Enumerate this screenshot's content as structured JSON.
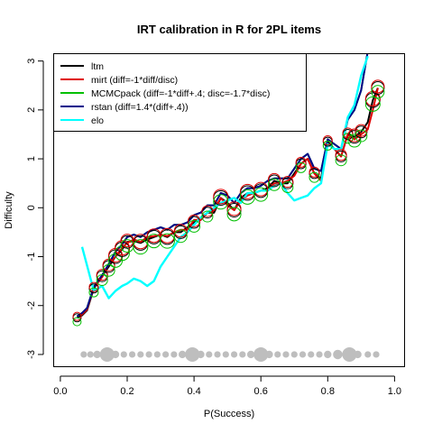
{
  "chart_data": {
    "type": "line",
    "title": "IRT calibration in R for 2PL items",
    "xlabel": "P(Success)",
    "ylabel": "Difficulty",
    "xlim": [
      -0.02,
      1.03
    ],
    "ylim": [
      -3.25,
      3.15
    ],
    "xticks": [
      0.0,
      0.2,
      0.4,
      0.6,
      0.8,
      1.0
    ],
    "xtick_labels": [
      "0.0",
      "0.2",
      "0.4",
      "0.6",
      "0.8",
      "1.0"
    ],
    "yticks": [
      -3,
      -2,
      -1,
      0,
      1,
      2,
      3
    ],
    "ytick_labels": [
      "-3",
      "-2",
      "-1",
      "0",
      "1",
      "2",
      "3"
    ],
    "grid": false,
    "legend_position": "top-left",
    "series": [
      {
        "name": "ltm",
        "color": "#000000",
        "x": [
          0.05,
          0.065,
          0.08,
          0.1,
          0.125,
          0.145,
          0.165,
          0.185,
          0.2,
          0.22,
          0.24,
          0.26,
          0.28,
          0.3,
          0.32,
          0.34,
          0.36,
          0.38,
          0.4,
          0.42,
          0.44,
          0.46,
          0.48,
          0.5,
          0.52,
          0.54,
          0.56,
          0.58,
          0.6,
          0.62,
          0.64,
          0.66,
          0.68,
          0.7,
          0.72,
          0.74,
          0.76,
          0.78,
          0.8,
          0.82,
          0.84,
          0.86,
          0.88,
          0.9,
          0.92,
          0.935,
          0.95
        ],
        "y": [
          -2.25,
          -2.2,
          -2.1,
          -1.65,
          -1.4,
          -1.2,
          -1.0,
          -0.85,
          -0.7,
          -0.68,
          -0.72,
          -0.65,
          -0.6,
          -0.55,
          -0.6,
          -0.5,
          -0.5,
          -0.4,
          -0.3,
          -0.25,
          -0.1,
          -0.1,
          0.2,
          0.1,
          -0.05,
          0.2,
          0.3,
          0.3,
          0.35,
          0.4,
          0.55,
          0.5,
          0.5,
          0.7,
          0.9,
          1.0,
          0.7,
          0.6,
          1.35,
          1.2,
          1.05,
          1.5,
          1.45,
          1.55,
          1.75,
          2.2,
          2.45
        ]
      },
      {
        "name": "mirt (diff=-1*diff/disc)",
        "color": "#df0000",
        "x": [
          0.05,
          0.065,
          0.08,
          0.1,
          0.125,
          0.145,
          0.165,
          0.185,
          0.2,
          0.22,
          0.24,
          0.26,
          0.28,
          0.3,
          0.32,
          0.34,
          0.36,
          0.38,
          0.4,
          0.42,
          0.44,
          0.46,
          0.48,
          0.5,
          0.52,
          0.54,
          0.56,
          0.58,
          0.6,
          0.62,
          0.64,
          0.66,
          0.68,
          0.7,
          0.72,
          0.74,
          0.76,
          0.78,
          0.8,
          0.82,
          0.84,
          0.86,
          0.88,
          0.9,
          0.92,
          0.935,
          0.95
        ],
        "y": [
          -2.22,
          -2.18,
          -2.08,
          -1.63,
          -1.42,
          -1.15,
          -1.0,
          -0.82,
          -0.72,
          -0.65,
          -0.7,
          -0.6,
          -0.58,
          -0.55,
          -0.58,
          -0.5,
          -0.45,
          -0.45,
          -0.25,
          -0.25,
          -0.1,
          -0.05,
          0.2,
          0.05,
          -0.05,
          0.15,
          0.25,
          0.3,
          0.35,
          0.35,
          0.5,
          0.5,
          0.55,
          0.65,
          0.9,
          1.0,
          0.7,
          0.55,
          1.3,
          1.2,
          1.05,
          1.5,
          1.4,
          1.5,
          1.6,
          2.0,
          2.45
        ]
      },
      {
        "name": "MCMCpack (diff=-1*diff+.4; disc=-1.7*disc)",
        "color": "#00c000",
        "x": [
          0.05,
          0.065,
          0.08,
          0.1,
          0.125,
          0.145,
          0.165,
          0.185,
          0.2,
          0.22,
          0.24,
          0.26,
          0.28,
          0.3,
          0.32,
          0.34,
          0.36,
          0.38,
          0.4,
          0.42,
          0.44,
          0.46,
          0.48,
          0.5,
          0.52,
          0.54,
          0.56,
          0.58,
          0.6,
          0.62,
          0.64,
          0.66,
          0.68,
          0.7,
          0.72,
          0.74,
          0.76,
          0.78,
          0.8,
          0.82,
          0.84,
          0.86,
          0.88,
          0.9,
          0.92
        ],
        "y": [
          -2.22,
          -2.15,
          -2.05,
          -1.62,
          -1.38,
          -1.15,
          -0.9,
          -0.75,
          -0.6,
          -0.55,
          -0.6,
          -0.5,
          -0.45,
          -0.4,
          -0.45,
          -0.35,
          -0.35,
          -0.3,
          -0.15,
          -0.1,
          0.05,
          0.05,
          0.3,
          0.25,
          0.1,
          0.3,
          0.4,
          0.4,
          0.45,
          0.55,
          0.6,
          0.6,
          0.6,
          0.8,
          1.0,
          1.1,
          0.8,
          0.75,
          1.4,
          1.3,
          1.2,
          1.8,
          2.0,
          2.4,
          3.2
        ]
      },
      {
        "name": "rstan (diff=1.4*(diff+.4))",
        "color": "#00008b",
        "x": [
          0.05,
          0.065,
          0.08,
          0.1,
          0.125,
          0.145,
          0.165,
          0.185,
          0.2,
          0.22,
          0.24,
          0.26,
          0.28,
          0.3,
          0.32,
          0.34,
          0.36,
          0.38,
          0.4,
          0.42,
          0.44,
          0.46,
          0.48,
          0.5,
          0.52,
          0.54,
          0.56,
          0.58,
          0.6,
          0.62,
          0.64,
          0.66,
          0.68,
          0.7,
          0.72,
          0.74,
          0.76,
          0.78,
          0.8,
          0.82,
          0.84,
          0.86,
          0.88,
          0.9,
          0.92
        ],
        "y": [
          -2.22,
          -2.15,
          -2.05,
          -1.62,
          -1.38,
          -1.15,
          -0.9,
          -0.75,
          -0.6,
          -0.55,
          -0.6,
          -0.5,
          -0.45,
          -0.4,
          -0.45,
          -0.35,
          -0.35,
          -0.3,
          -0.15,
          -0.1,
          0.05,
          0.05,
          0.3,
          0.25,
          0.1,
          0.3,
          0.4,
          0.4,
          0.45,
          0.55,
          0.6,
          0.6,
          0.6,
          0.8,
          1.0,
          1.1,
          0.8,
          0.75,
          1.4,
          1.3,
          1.2,
          1.8,
          2.0,
          2.4,
          3.2
        ]
      },
      {
        "name": "elo",
        "color": "#00ffff",
        "x": [
          0.065,
          0.1,
          0.125,
          0.145,
          0.165,
          0.185,
          0.2,
          0.22,
          0.24,
          0.26,
          0.28,
          0.3,
          0.32,
          0.34,
          0.36,
          0.38,
          0.4,
          0.42,
          0.44,
          0.46,
          0.48,
          0.5,
          0.52,
          0.54,
          0.56,
          0.58,
          0.6,
          0.62,
          0.64,
          0.66,
          0.68,
          0.7,
          0.72,
          0.74,
          0.76,
          0.78,
          0.8,
          0.82,
          0.84,
          0.86,
          0.88,
          0.9,
          0.92
        ],
        "y": [
          -0.8,
          -1.7,
          -1.6,
          -1.85,
          -1.7,
          -1.6,
          -1.55,
          -1.45,
          -1.5,
          -1.6,
          -1.5,
          -1.2,
          -1.0,
          -0.8,
          -0.6,
          -0.5,
          -0.35,
          -0.2,
          -0.1,
          0.0,
          0.1,
          0.15,
          0.2,
          0.1,
          0.3,
          0.3,
          0.35,
          0.35,
          0.45,
          0.5,
          0.3,
          0.15,
          0.2,
          0.25,
          0.4,
          0.5,
          1.3,
          1.2,
          1.2,
          1.85,
          2.1,
          2.7,
          3.1
        ]
      }
    ],
    "circle_markers": [
      {
        "x": 0.05,
        "y": -2.25,
        "size": 0.3
      },
      {
        "x": 0.1,
        "y": -1.65,
        "size": 0.4
      },
      {
        "x": 0.125,
        "y": -1.4,
        "size": 0.6
      },
      {
        "x": 0.145,
        "y": -1.2,
        "size": 0.7
      },
      {
        "x": 0.165,
        "y": -1.0,
        "size": 0.9
      },
      {
        "x": 0.185,
        "y": -0.85,
        "size": 1.0
      },
      {
        "x": 0.2,
        "y": -0.7,
        "size": 0.8
      },
      {
        "x": 0.24,
        "y": -0.72,
        "size": 1.0
      },
      {
        "x": 0.28,
        "y": -0.6,
        "size": 0.9
      },
      {
        "x": 0.32,
        "y": -0.6,
        "size": 1.0
      },
      {
        "x": 0.36,
        "y": -0.5,
        "size": 0.8
      },
      {
        "x": 0.4,
        "y": -0.3,
        "size": 0.7
      },
      {
        "x": 0.44,
        "y": -0.1,
        "size": 0.6
      },
      {
        "x": 0.48,
        "y": 0.2,
        "size": 1.0
      },
      {
        "x": 0.52,
        "y": -0.05,
        "size": 0.9
      },
      {
        "x": 0.56,
        "y": 0.3,
        "size": 1.0
      },
      {
        "x": 0.6,
        "y": 0.35,
        "size": 0.9
      },
      {
        "x": 0.64,
        "y": 0.55,
        "size": 0.7
      },
      {
        "x": 0.68,
        "y": 0.5,
        "size": 0.6
      },
      {
        "x": 0.72,
        "y": 0.9,
        "size": 0.5
      },
      {
        "x": 0.76,
        "y": 0.7,
        "size": 0.5
      },
      {
        "x": 0.8,
        "y": 1.35,
        "size": 0.4
      },
      {
        "x": 0.84,
        "y": 1.05,
        "size": 0.6
      },
      {
        "x": 0.86,
        "y": 1.5,
        "size": 0.5
      },
      {
        "x": 0.88,
        "y": 1.45,
        "size": 0.8
      },
      {
        "x": 0.9,
        "y": 1.55,
        "size": 0.7
      },
      {
        "x": 0.935,
        "y": 2.2,
        "size": 1.0
      },
      {
        "x": 0.95,
        "y": 2.45,
        "size": 0.8
      }
    ],
    "frequency_dots": {
      "y": -3,
      "color": "#bebebe",
      "x": [
        0.07,
        0.09,
        0.11,
        0.14,
        0.165,
        0.19,
        0.215,
        0.24,
        0.265,
        0.29,
        0.315,
        0.34,
        0.365,
        0.395,
        0.42,
        0.445,
        0.47,
        0.495,
        0.52,
        0.545,
        0.57,
        0.6,
        0.625,
        0.65,
        0.675,
        0.7,
        0.725,
        0.75,
        0.775,
        0.8,
        0.83,
        0.865,
        0.89,
        0.92,
        0.945
      ],
      "weights": [
        0.2,
        0.2,
        0.3,
        1.0,
        0.3,
        0.2,
        0.2,
        0.2,
        0.2,
        0.2,
        0.2,
        0.2,
        0.3,
        1.0,
        0.3,
        0.2,
        0.2,
        0.2,
        0.2,
        0.2,
        0.3,
        1.0,
        0.3,
        0.2,
        0.2,
        0.2,
        0.2,
        0.2,
        0.2,
        0.3,
        0.5,
        1.0,
        0.3,
        0.2,
        0.2
      ]
    }
  }
}
